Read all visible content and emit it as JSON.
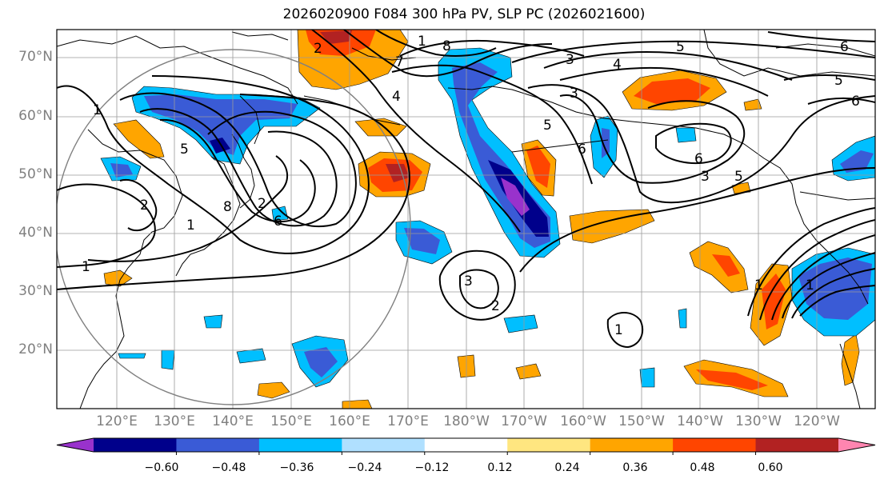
{
  "title": "2026020900 F084 300 hPa PV, SLP PC (2026021600)",
  "lat_labels": [
    "70°N",
    "60°N",
    "50°N",
    "40°N",
    "30°N",
    "20°N"
  ],
  "lon_labels": [
    "120°E",
    "130°E",
    "140°E",
    "150°E",
    "160°E",
    "170°E",
    "180°W",
    "170°W",
    "160°W",
    "150°W",
    "140°W",
    "130°W",
    "120°W"
  ],
  "colorbar": {
    "colors": [
      "#9932cc",
      "#00008b",
      "#3a5bd6",
      "#00bfff",
      "#b0e0ff",
      "#ffffff",
      "#ffe680",
      "#ffa500",
      "#ff4500",
      "#b22222",
      "#ff85b0"
    ],
    "ticks": [
      "−0.60",
      "−0.48",
      "−0.36",
      "−0.24",
      "−0.12",
      "0.12",
      "0.24",
      "0.36",
      "0.48",
      "0.60"
    ]
  },
  "contour_labels": [
    "2",
    "1",
    "8",
    "5",
    "6",
    "6",
    "5",
    "6",
    "3",
    "4",
    "3",
    "4",
    "3",
    "5",
    "6",
    "5",
    "6",
    "3",
    "1",
    "1",
    "5",
    "2",
    "1",
    "8",
    "1",
    "2",
    "2",
    "1",
    "1",
    "7"
  ]
}
